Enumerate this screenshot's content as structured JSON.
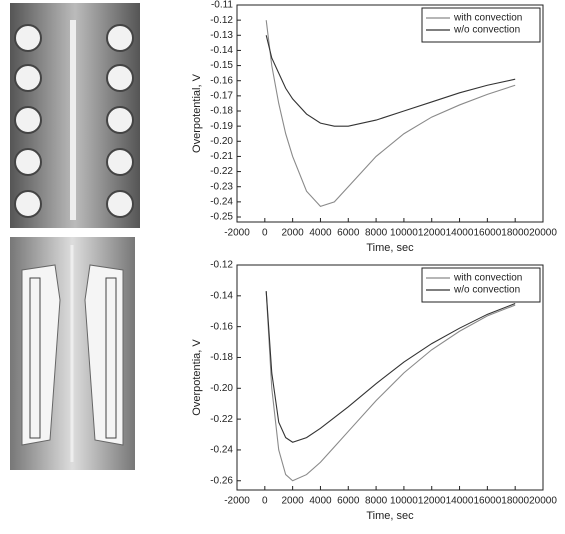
{
  "chart_data": [
    {
      "type": "line",
      "ylabel": "Overpotential, V",
      "xlabel": "Time, sec",
      "x": [
        100,
        500,
        1000,
        1500,
        2000,
        3000,
        4000,
        5000,
        6000,
        8000,
        10000,
        12000,
        14000,
        16000,
        18000
      ],
      "series": [
        {
          "name": "with convection",
          "color": "#8a8a8a",
          "values": [
            -0.12,
            -0.15,
            -0.175,
            -0.195,
            -0.21,
            -0.233,
            -0.243,
            -0.24,
            -0.23,
            -0.21,
            -0.195,
            -0.184,
            -0.176,
            -0.169,
            -0.163
          ]
        },
        {
          "name": "w/o convection",
          "color": "#333333",
          "values": [
            -0.13,
            -0.145,
            -0.155,
            -0.165,
            -0.172,
            -0.182,
            -0.188,
            -0.19,
            -0.19,
            -0.186,
            -0.18,
            -0.174,
            -0.168,
            -0.163,
            -0.159
          ]
        }
      ],
      "xlim": [
        -2000,
        20000
      ],
      "xticks": [
        -2000,
        0,
        2000,
        4000,
        6000,
        8000,
        10000,
        12000,
        14000,
        16000,
        18000,
        20000
      ],
      "ylim": [
        -0.2533,
        -0.11
      ],
      "yticks": [
        -0.11,
        -0.12,
        -0.13,
        -0.14,
        -0.15,
        -0.16,
        -0.17,
        -0.18,
        -0.19,
        {
          "value": -0.2,
          "label": "-0.20"
        },
        -0.21,
        -0.22,
        -0.23,
        -0.24,
        -0.25
      ],
      "legend": "upper right"
    },
    {
      "type": "line",
      "ylabel": "Overpotentia, V",
      "xlabel": "Time, sec",
      "x": [
        100,
        500,
        1000,
        1500,
        2000,
        3000,
        4000,
        5000,
        6000,
        8000,
        10000,
        12000,
        14000,
        16000,
        18000
      ],
      "series": [
        {
          "name": "with convection",
          "color": "#8a8a8a",
          "values": [
            -0.137,
            -0.2,
            -0.24,
            -0.256,
            -0.26,
            -0.256,
            -0.248,
            -0.238,
            -0.228,
            -0.208,
            -0.19,
            -0.175,
            -0.163,
            -0.153,
            -0.146
          ]
        },
        {
          "name": "w/o convection",
          "color": "#333333",
          "values": [
            -0.137,
            -0.19,
            -0.222,
            -0.232,
            -0.235,
            -0.232,
            -0.226,
            -0.219,
            -0.212,
            -0.197,
            -0.183,
            -0.171,
            -0.161,
            -0.152,
            -0.145
          ]
        }
      ],
      "xlim": [
        -2000,
        20000
      ],
      "xticks": [
        -2000,
        0,
        2000,
        4000,
        6000,
        8000,
        10000,
        12000,
        14000,
        16000,
        18000,
        20000
      ],
      "ylim": [
        -0.266,
        -0.12
      ],
      "yticks": [
        -0.12,
        -0.14,
        -0.16,
        -0.18,
        {
          "value": -0.2,
          "label": "-0.20"
        },
        -0.22,
        -0.24,
        -0.26
      ],
      "legend": "upper right"
    }
  ]
}
